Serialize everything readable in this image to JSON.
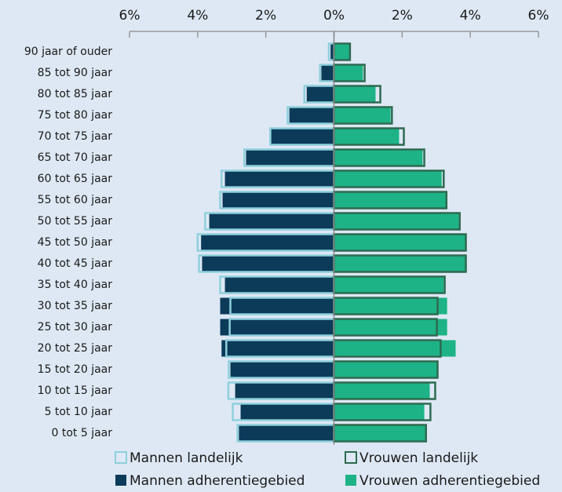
{
  "chart_data": {
    "type": "pyramid",
    "categories": [
      "90 jaar of ouder",
      "85 tot 90 jaar",
      "80 tot 85 jaar",
      "75 tot 80 jaar",
      "70 tot 75 jaar",
      "65 tot 70 jaar",
      "60 tot 65 jaar",
      "55 tot 60 jaar",
      "50 tot 55 jaar",
      "45 tot 50 jaar",
      "40 tot 45 jaar",
      "35 tot 40 jaar",
      "30 tot 35 jaar",
      "25 tot 30 jaar",
      "20 tot 25 jaar",
      "15 tot 20 jaar",
      "10 tot 15 jaar",
      "5 tot 10 jaar",
      "0 tot 5 jaar"
    ],
    "xlim": [
      -6,
      6
    ],
    "xticks": [
      {
        "value": -6,
        "label": "6%"
      },
      {
        "value": -4,
        "label": "4%"
      },
      {
        "value": -2,
        "label": "2%"
      },
      {
        "value": 0,
        "label": "0%"
      },
      {
        "value": 2,
        "label": "2%"
      },
      {
        "value": 4,
        "label": "4%"
      },
      {
        "value": 6,
        "label": "6%"
      }
    ],
    "series": [
      {
        "name": "Mannen adherentiegebied",
        "color": "#0c3b5a",
        "outline": false,
        "values": [
          -0.1,
          -0.37,
          -0.8,
          -1.31,
          -1.84,
          -2.58,
          -3.2,
          -3.27,
          -3.66,
          -3.9,
          -3.87,
          -3.2,
          -3.34,
          -3.34,
          -3.3,
          -3.04,
          -2.9,
          -2.74,
          -2.79
        ]
      },
      {
        "name": "Mannen landelijk",
        "color": "#8fd0dc",
        "outline": true,
        "values": [
          -0.15,
          -0.41,
          -0.87,
          -1.36,
          -1.87,
          -2.63,
          -3.3,
          -3.34,
          -3.78,
          -4.0,
          -3.96,
          -3.34,
          -3.04,
          -3.06,
          -3.16,
          -3.09,
          -3.1,
          -2.97,
          -2.83
        ]
      },
      {
        "name": "Vrouwen adherentiegebied",
        "color": "#1db386",
        "outline": false,
        "values": [
          0.45,
          0.85,
          1.22,
          1.66,
          1.91,
          2.6,
          3.16,
          3.3,
          3.66,
          3.85,
          3.85,
          3.22,
          3.32,
          3.32,
          3.57,
          3.02,
          2.81,
          2.65,
          2.72
        ]
      },
      {
        "name": "Vrouwen landelijk",
        "color": "#2e6a50",
        "outline": true,
        "values": [
          0.47,
          0.9,
          1.36,
          1.7,
          2.05,
          2.65,
          3.22,
          3.3,
          3.69,
          3.87,
          3.87,
          3.25,
          3.04,
          3.02,
          3.13,
          3.04,
          2.97,
          2.83,
          2.7
        ]
      }
    ],
    "legend": [
      1,
      3,
      0,
      2
    ]
  }
}
